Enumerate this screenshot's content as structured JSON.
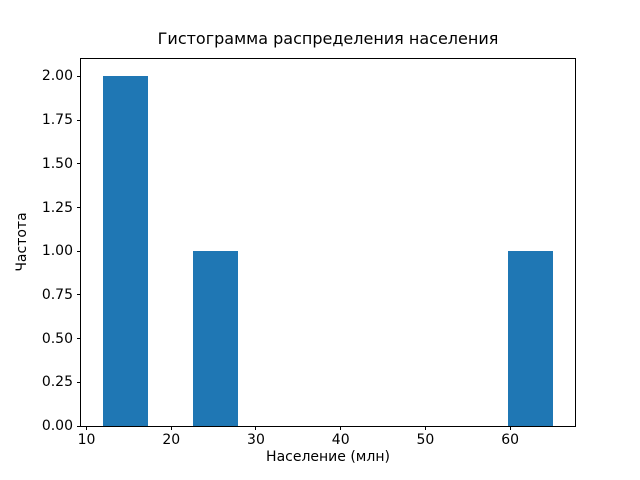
{
  "chart_data": {
    "type": "bar",
    "subtype": "histogram",
    "title": "Гистограмма распределения населения",
    "xlabel": "Население (млн)",
    "ylabel": "Частота",
    "xlim": [
      9.35,
      67.65
    ],
    "ylim": [
      0,
      2.1
    ],
    "grid": false,
    "legend": "none",
    "bar_color": "#1f77b4",
    "xticks": [
      {
        "value": 10,
        "label": "10"
      },
      {
        "value": 20,
        "label": "20"
      },
      {
        "value": 30,
        "label": "30"
      },
      {
        "value": 40,
        "label": "40"
      },
      {
        "value": 50,
        "label": "50"
      },
      {
        "value": 60,
        "label": "60"
      }
    ],
    "yticks": [
      {
        "value": 0.0,
        "label": "0.00"
      },
      {
        "value": 0.25,
        "label": "0.25"
      },
      {
        "value": 0.5,
        "label": "0.50"
      },
      {
        "value": 0.75,
        "label": "0.75"
      },
      {
        "value": 1.0,
        "label": "1.00"
      },
      {
        "value": 1.25,
        "label": "1.25"
      },
      {
        "value": 1.5,
        "label": "1.50"
      },
      {
        "value": 1.75,
        "label": "1.75"
      },
      {
        "value": 2.0,
        "label": "2.00"
      }
    ],
    "bars": [
      {
        "bin_start": 12.0,
        "bin_end": 17.3,
        "frequency": 2
      },
      {
        "bin_start": 22.6,
        "bin_end": 27.9,
        "frequency": 1
      },
      {
        "bin_start": 59.7,
        "bin_end": 65.0,
        "frequency": 1
      }
    ]
  }
}
